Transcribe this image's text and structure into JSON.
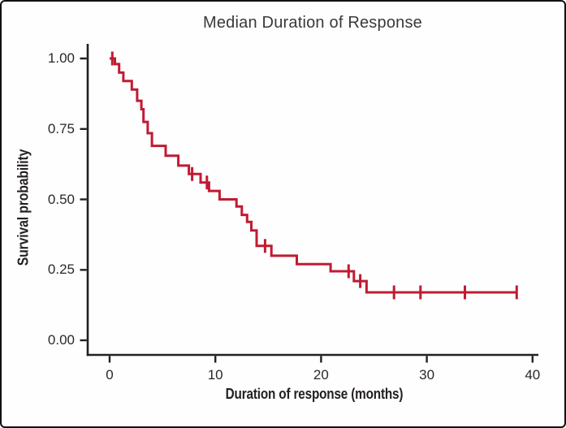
{
  "window": {
    "background": "#fefefe",
    "frame_border_color": "#111111"
  },
  "chart_data": {
    "type": "line",
    "subtype": "kaplan-meier-step-curve",
    "title": "Median Duration of Response",
    "xlabel": "Duration of response (months)",
    "ylabel": "Survival probability",
    "grid": false,
    "legend": "none",
    "xlim": [
      0,
      40
    ],
    "ylim": [
      0,
      1
    ],
    "x_tick_values": [
      0,
      10,
      20,
      30,
      40
    ],
    "x_tick_labels": [
      "0",
      "10",
      "20",
      "30",
      "40"
    ],
    "y_tick_values": [
      0,
      0.25,
      0.5,
      0.75,
      1
    ],
    "y_tick_labels": [
      "0.00",
      "0.25",
      "0.50",
      "0.75",
      "1.00"
    ],
    "line_color": "#c01b33",
    "axis_color": "#242021",
    "end_time": 38.5,
    "median_months": 10.4,
    "steps": [
      [
        0,
        1.0
      ],
      [
        0.5,
        0.98
      ],
      [
        0.9,
        0.95
      ],
      [
        1.3,
        0.92
      ],
      [
        2.1,
        0.89
      ],
      [
        2.6,
        0.85
      ],
      [
        3.0,
        0.82
      ],
      [
        3.2,
        0.775
      ],
      [
        3.6,
        0.735
      ],
      [
        4.0,
        0.69
      ],
      [
        5.3,
        0.655
      ],
      [
        6.5,
        0.62
      ],
      [
        7.5,
        0.59
      ],
      [
        8.6,
        0.56
      ],
      [
        9.4,
        0.53
      ],
      [
        10.4,
        0.5
      ],
      [
        12.0,
        0.475
      ],
      [
        12.5,
        0.445
      ],
      [
        13.0,
        0.42
      ],
      [
        13.4,
        0.39
      ],
      [
        13.9,
        0.335
      ],
      [
        15.3,
        0.3
      ],
      [
        17.7,
        0.27
      ],
      [
        20.9,
        0.245
      ],
      [
        23.1,
        0.21
      ],
      [
        24.3,
        0.17
      ]
    ],
    "censor_marks": [
      [
        0.25,
        1.0
      ],
      [
        7.8,
        0.59
      ],
      [
        9.2,
        0.56
      ],
      [
        14.7,
        0.335
      ],
      [
        22.6,
        0.245
      ],
      [
        23.7,
        0.21
      ],
      [
        26.9,
        0.17
      ],
      [
        29.4,
        0.17
      ],
      [
        33.6,
        0.17
      ],
      [
        38.5,
        0.17
      ]
    ]
  }
}
